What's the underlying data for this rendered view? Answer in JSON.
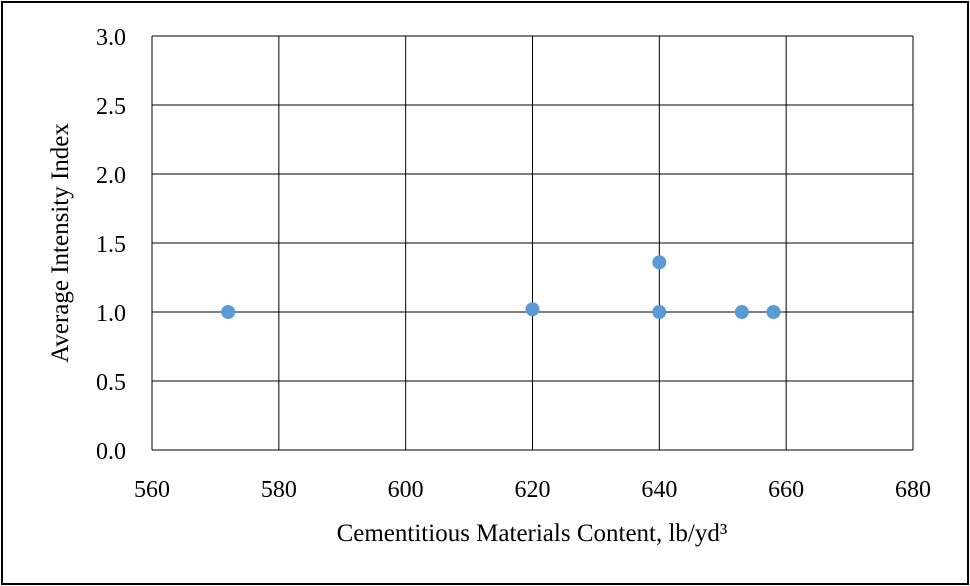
{
  "chart_data": {
    "type": "scatter",
    "xlabel": "Cementitious Materials Content, lb/yd³",
    "ylabel": "Average Intensity Index",
    "xlim": [
      560,
      680
    ],
    "ylim": [
      0.0,
      3.0
    ],
    "x_ticks": [
      "560",
      "580",
      "600",
      "620",
      "640",
      "660",
      "680"
    ],
    "y_ticks": [
      "0.0",
      "0.5",
      "1.0",
      "1.5",
      "2.0",
      "2.5",
      "3.0"
    ],
    "grid": true,
    "legend": "none",
    "marker_color": "#5b9bd5",
    "series": [
      {
        "points": [
          {
            "x": 572,
            "y": 1.0
          },
          {
            "x": 620,
            "y": 1.02
          },
          {
            "x": 640,
            "y": 1.36
          },
          {
            "x": 640,
            "y": 1.0
          },
          {
            "x": 653,
            "y": 1.0
          },
          {
            "x": 658,
            "y": 1.0
          }
        ]
      }
    ]
  }
}
